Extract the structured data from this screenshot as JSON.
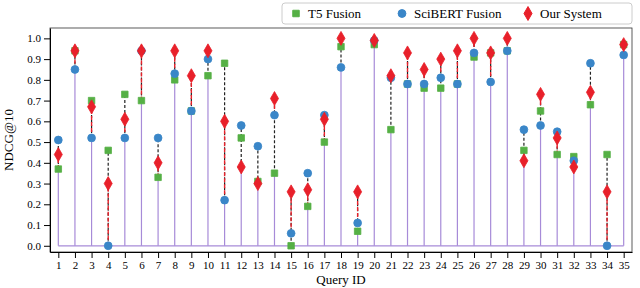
{
  "chart_data": {
    "type": "scatter",
    "x_label": "Query ID",
    "y_label": "NDCG@10",
    "categories": [
      "1",
      "2",
      "3",
      "4",
      "5",
      "6",
      "7",
      "8",
      "9",
      "10",
      "11",
      "12",
      "13",
      "14",
      "15",
      "16",
      "17",
      "18",
      "19",
      "20",
      "21",
      "22",
      "23",
      "24",
      "25",
      "26",
      "27",
      "28",
      "29",
      "30",
      "31",
      "32",
      "33",
      "34",
      "35"
    ],
    "series": [
      {
        "name": "T5 Fusion",
        "color": "#55b045",
        "marker": "square",
        "values": [
          0.37,
          0.94,
          0.7,
          0.46,
          0.73,
          0.7,
          0.33,
          0.8,
          0.65,
          0.82,
          0.88,
          0.52,
          0.31,
          0.35,
          0.0,
          0.19,
          0.5,
          0.96,
          0.07,
          0.97,
          0.56,
          0.78,
          0.76,
          0.76,
          0.78,
          0.91,
          0.93,
          0.94,
          0.46,
          0.65,
          0.44,
          0.43,
          0.68,
          0.44,
          0.97
        ]
      },
      {
        "name": "SciBERT Fusion",
        "color": "#3a86c8",
        "marker": "circle",
        "values": [
          0.51,
          0.85,
          0.52,
          0.0,
          0.52,
          0.94,
          0.52,
          0.83,
          0.65,
          0.9,
          0.22,
          0.58,
          0.48,
          0.63,
          0.06,
          0.35,
          0.63,
          0.86,
          0.11,
          0.99,
          0.81,
          0.78,
          0.78,
          0.81,
          0.78,
          0.93,
          0.79,
          0.94,
          0.56,
          0.58,
          0.55,
          0.41,
          0.88,
          0.0,
          0.92
        ]
      },
      {
        "name": "Our System",
        "color": "#e8202a",
        "marker": "diamond",
        "values": [
          0.44,
          0.94,
          0.67,
          0.3,
          0.61,
          0.94,
          0.4,
          0.94,
          0.82,
          0.94,
          0.6,
          0.38,
          0.3,
          0.71,
          0.26,
          0.27,
          0.61,
          1.0,
          0.26,
          0.99,
          0.82,
          0.93,
          0.85,
          0.9,
          0.94,
          1.0,
          0.93,
          1.0,
          0.41,
          0.73,
          0.52,
          0.38,
          0.74,
          0.26,
          0.97
        ]
      }
    ],
    "ylim": [
      -0.03,
      1.05
    ],
    "yticks": [
      {
        "value": 0,
        "label": "0.0"
      },
      0.1,
      0.2,
      0.3,
      0.4,
      0.5,
      0.6,
      0.7,
      0.8,
      0.9,
      {
        "value": 1,
        "label": "1.0"
      }
    ],
    "legend": "top",
    "grid": false
  }
}
